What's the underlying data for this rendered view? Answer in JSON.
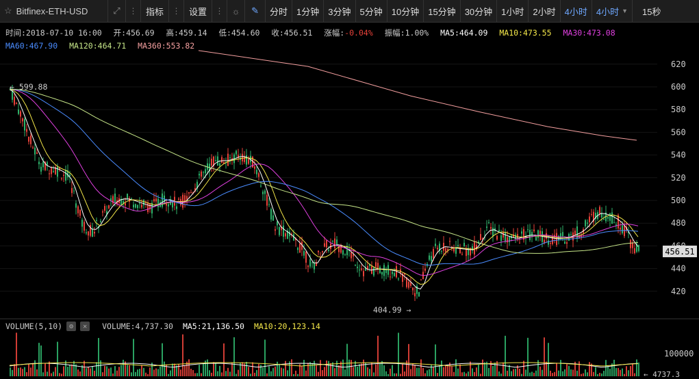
{
  "toolbar": {
    "symbol": "Bitfinex-ETH-USD",
    "indicator_label": "指标",
    "settings_label": "设置",
    "timeframes": [
      "分时",
      "1分钟",
      "3分钟",
      "5分钟",
      "10分钟",
      "15分钟",
      "30分钟",
      "1小时",
      "2小时",
      "4小时"
    ],
    "active_timeframe": "4小时",
    "dropdown_label": "4小时",
    "last_label": "15秒"
  },
  "info": {
    "time": "时间:2018-07-10 16:00",
    "open": "开:456.69",
    "high": "高:459.14",
    "low": "低:454.60",
    "close": "收:456.51",
    "change_label": "涨幅:",
    "change_value": "-0.04%",
    "amplitude": "振幅:1.00%",
    "ma5": "MA5:464.09",
    "ma10": "MA10:473.55",
    "ma30": "MA30:473.08",
    "ma60": "MA60:467.90",
    "ma120": "MA120:464.71",
    "ma360": "MA360:553.82"
  },
  "colors": {
    "up": "#2fb46c",
    "down": "#e8423a",
    "ma5": "#ffffff",
    "ma10": "#f5e84a",
    "ma30": "#e040e0",
    "ma60": "#4a8cff",
    "ma120": "#c8e88a",
    "ma360": "#f5a0a0"
  },
  "price_axis": {
    "ticks": [
      "620",
      "600",
      "580",
      "560",
      "540",
      "520",
      "500",
      "480",
      "460",
      "440",
      "420"
    ],
    "current_price": "456.51",
    "high_marker": "599.88",
    "low_marker": "404.99"
  },
  "volume": {
    "header": "VOLUME(5,10)",
    "volume": "VOLUME:4,737.30",
    "ma5": "MA5:21,136.50",
    "ma10": "MA10:20,123.14",
    "axis_tick": "100000",
    "current": "4737.3"
  }
}
